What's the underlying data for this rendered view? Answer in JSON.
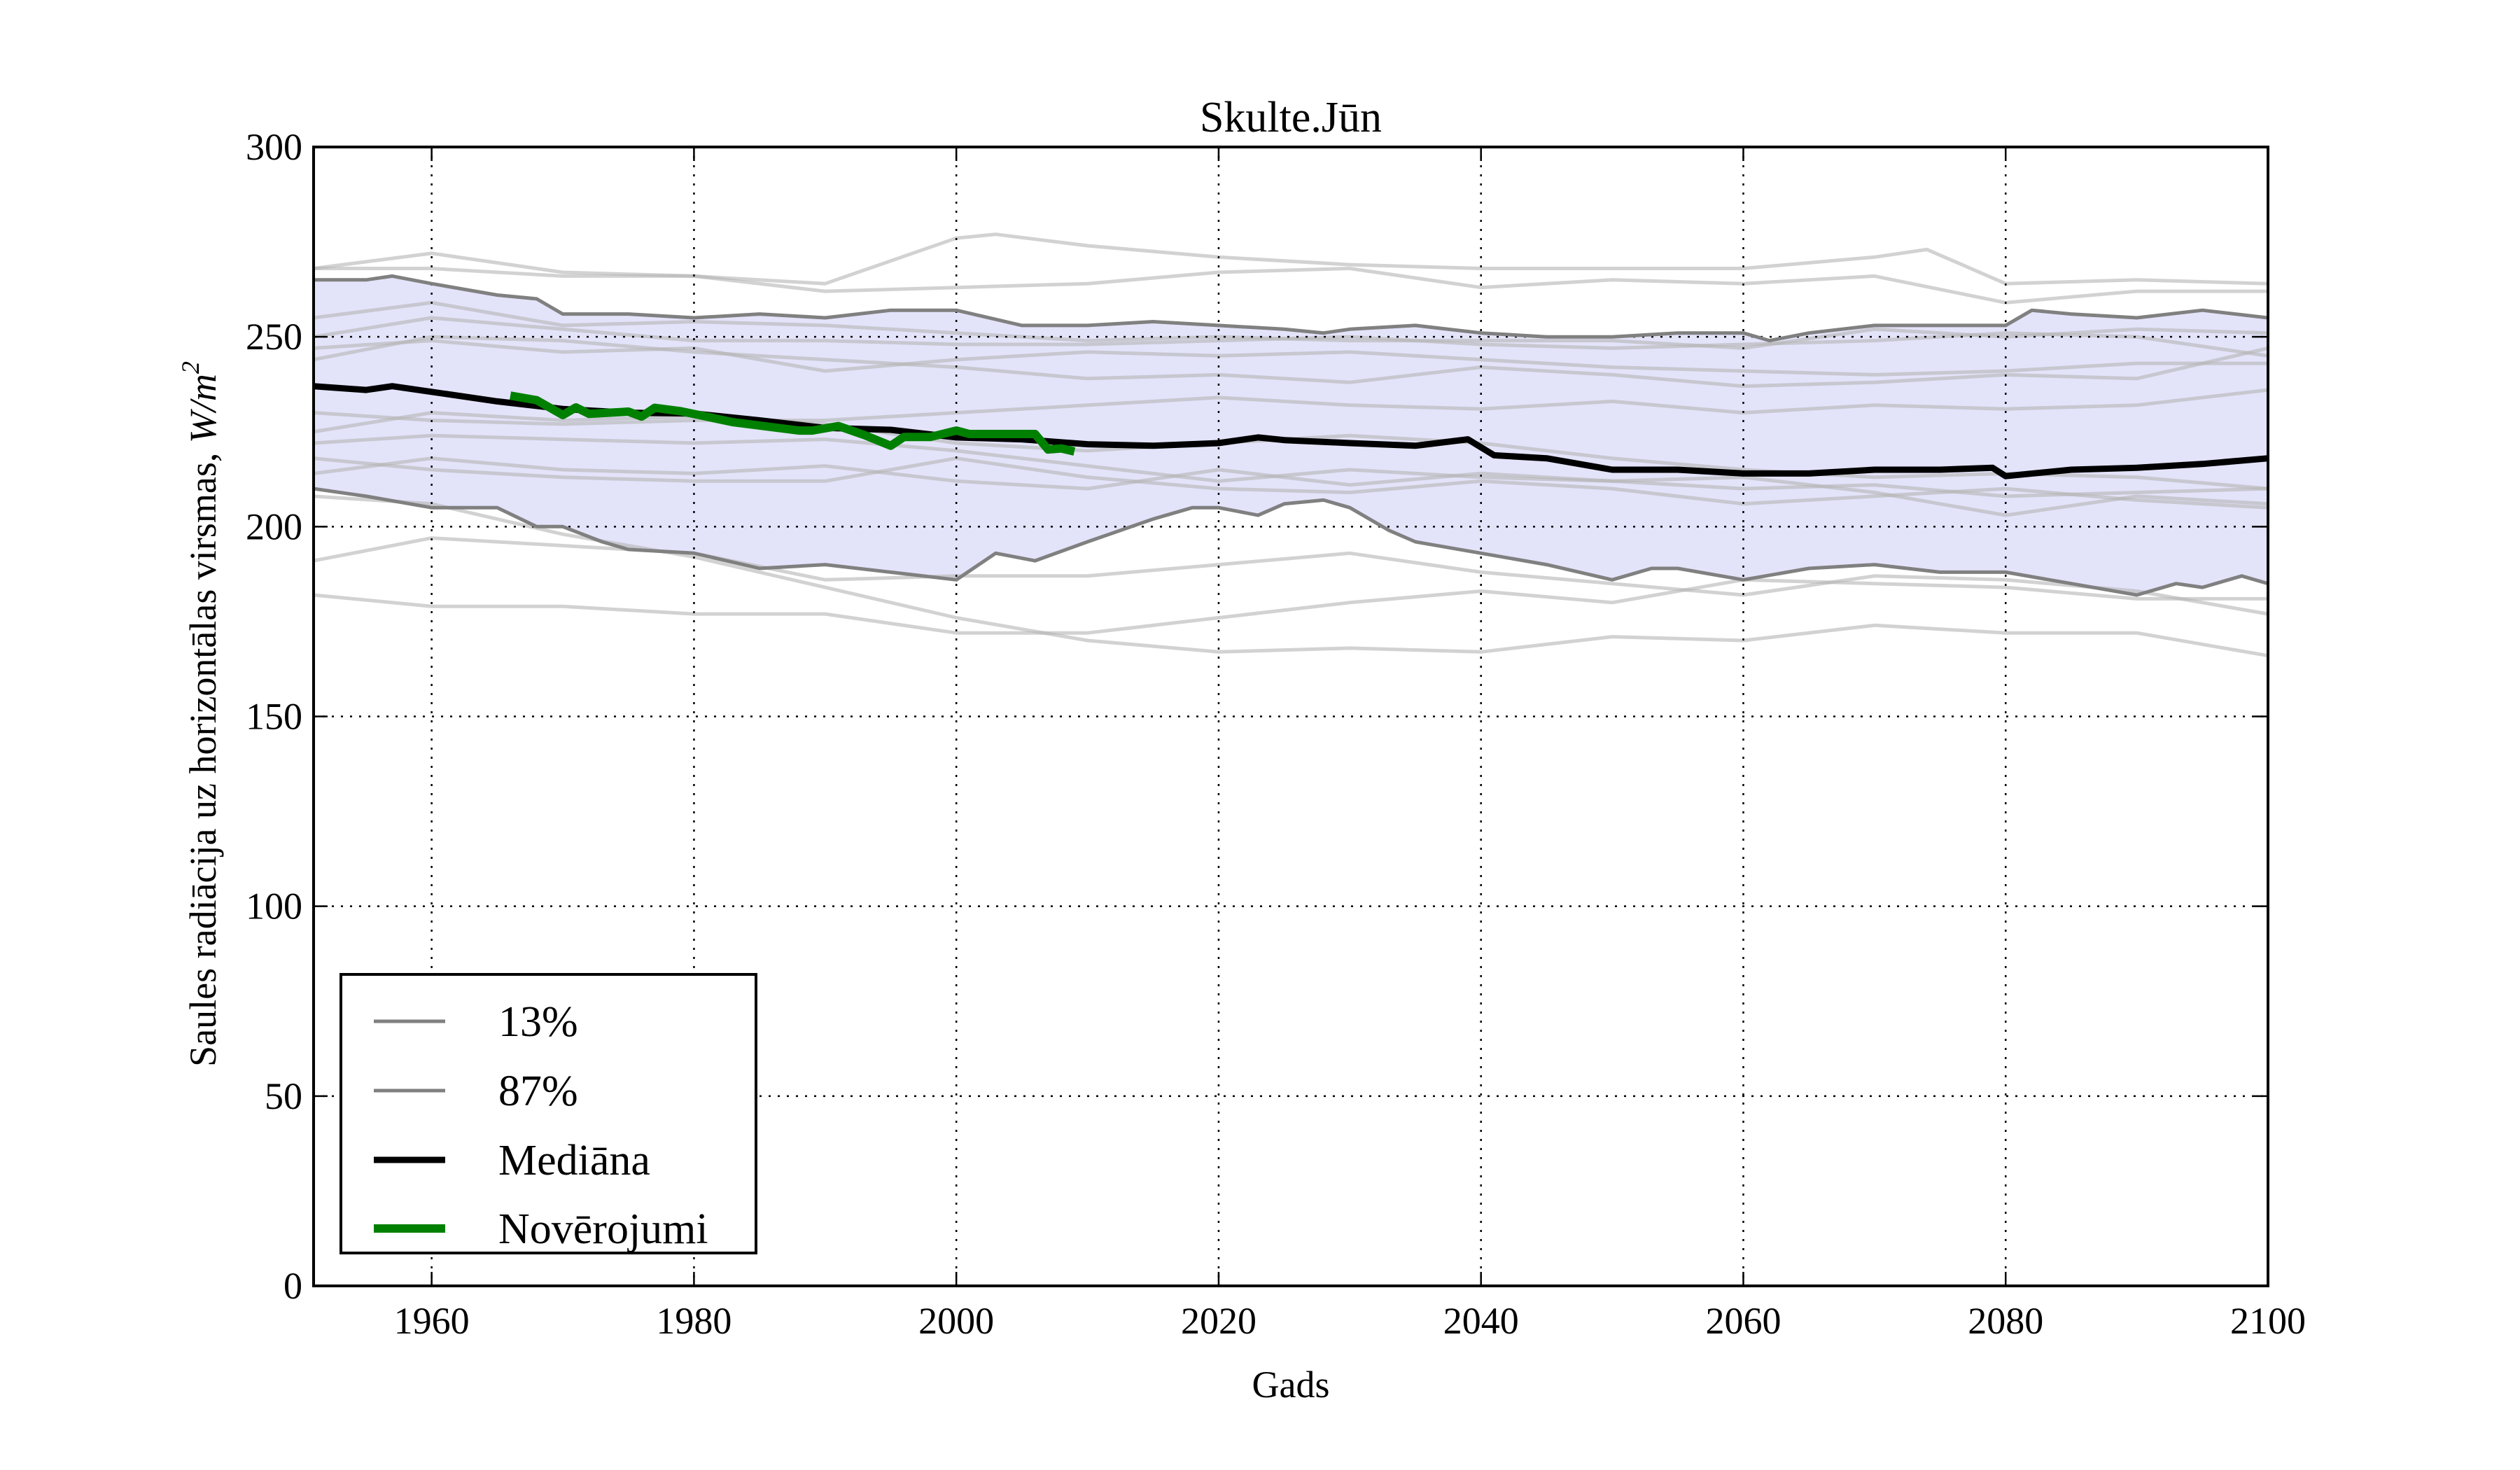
{
  "chart_data": {
    "type": "line",
    "title": "Skulte.Jūn",
    "xlabel": "Gads",
    "ylabel": "Saules radiācija uz horizontālas virsmas, ",
    "ylabel_math": "W/m",
    "ylabel_math_sup": "2",
    "xlim": [
      1951,
      2100
    ],
    "ylim": [
      0,
      300
    ],
    "x_ticks": [
      1960,
      1980,
      2000,
      2020,
      2040,
      2060,
      2080,
      2100
    ],
    "x_tick_labels": [
      "1960",
      "1980",
      "2000",
      "2020",
      "2040",
      "2060",
      "2080",
      "2100"
    ],
    "y_ticks": [
      0,
      50,
      100,
      150,
      200,
      250,
      300
    ],
    "y_tick_labels": [
      "0",
      "50",
      "100",
      "150",
      "200",
      "250",
      "300"
    ],
    "grid": true,
    "legend_position": "lower-left",
    "legend": [
      {
        "label": "13%",
        "key": "p13"
      },
      {
        "label": "87%",
        "key": "p87"
      },
      {
        "label": "Mediāna",
        "key": "median"
      },
      {
        "label": "Novērojumi",
        "key": "obs"
      }
    ],
    "colors": {
      "band_fill": "#e3e3fa",
      "band_edge": "#808080",
      "ensemble": "#c8c8c8",
      "median": "#000000",
      "obs": "#008000",
      "grid": "#000000",
      "axes": "#000000"
    },
    "series": {
      "p87": {
        "name": "87%",
        "x": [
          1951,
          1955,
          1957,
          1960,
          1965,
          1968,
          1970,
          1975,
          1980,
          1985,
          1990,
          1995,
          2000,
          2005,
          2010,
          2015,
          2020,
          2025,
          2028,
          2030,
          2035,
          2040,
          2045,
          2050,
          2055,
          2060,
          2062,
          2065,
          2070,
          2075,
          2080,
          2082,
          2085,
          2090,
          2095,
          2100
        ],
        "y": [
          265,
          265,
          266,
          264,
          261,
          260,
          256,
          256,
          255,
          256,
          255,
          257,
          257,
          253,
          253,
          254,
          253,
          252,
          251,
          252,
          253,
          251,
          250,
          250,
          251,
          251,
          249,
          251,
          253,
          253,
          253,
          257,
          256,
          255,
          257,
          255
        ]
      },
      "p13": {
        "name": "13%",
        "x": [
          1951,
          1955,
          1960,
          1965,
          1968,
          1970,
          1973,
          1975,
          1980,
          1985,
          1990,
          1995,
          2000,
          2003,
          2006,
          2010,
          2015,
          2018,
          2020,
          2023,
          2025,
          2028,
          2030,
          2033,
          2035,
          2040,
          2045,
          2050,
          2053,
          2055,
          2060,
          2065,
          2070,
          2075,
          2080,
          2085,
          2090,
          2093,
          2095,
          2098,
          2100
        ],
        "y": [
          210,
          208,
          205,
          205,
          200,
          200,
          196,
          194,
          193,
          189,
          190,
          188,
          186,
          193,
          191,
          196,
          202,
          205,
          205,
          203,
          206,
          207,
          205,
          199,
          196,
          193,
          190,
          186,
          189,
          189,
          186,
          189,
          190,
          188,
          188,
          185,
          182,
          185,
          184,
          187,
          185
        ]
      },
      "median": {
        "name": "Mediāna",
        "x": [
          1951,
          1955,
          1957,
          1960,
          1965,
          1970,
          1975,
          1980,
          1985,
          1990,
          1995,
          2000,
          2005,
          2010,
          2015,
          2020,
          2023,
          2025,
          2030,
          2035,
          2039,
          2041,
          2045,
          2050,
          2055,
          2060,
          2065,
          2070,
          2075,
          2079,
          2080,
          2085,
          2090,
          2095,
          2100
        ],
        "y": [
          237,
          236,
          237,
          235.5,
          233,
          231,
          230,
          229.8,
          228,
          226,
          225.5,
          223.5,
          223,
          221.7,
          221.3,
          222,
          223.5,
          222.8,
          222,
          221.3,
          223,
          218.8,
          218,
          215,
          215,
          214,
          214,
          215,
          215,
          215.5,
          213.3,
          215,
          215.5,
          216.5,
          218
        ]
      },
      "obs": {
        "name": "Novērojumi",
        "x": [
          1966,
          1968,
          1970,
          1971,
          1972,
          1975,
          1976,
          1977,
          1979,
          1983,
          1988,
          1989,
          1991,
          1993,
          1995,
          1996,
          1998,
          2000,
          2001,
          2006,
          2007,
          2008,
          2009
        ],
        "y": [
          234.5,
          233.3,
          229.4,
          231.4,
          229.7,
          230.3,
          229,
          231.3,
          230.4,
          227.5,
          225.3,
          225.3,
          226.5,
          224.1,
          221.3,
          223.6,
          223.6,
          225.3,
          224.4,
          224.4,
          220.3,
          220.6,
          219.8
        ]
      },
      "ensemble": [
        {
          "x": [
            1951,
            1960,
            1970,
            1980,
            1990,
            1995,
            2000,
            2003,
            2010,
            2020,
            2030,
            2040,
            2050,
            2060,
            2070,
            2074,
            2080,
            2090,
            2100
          ],
          "y": [
            268,
            272,
            267,
            266,
            264,
            270,
            276,
            277,
            274,
            271,
            269,
            268,
            268,
            268,
            271,
            273,
            264,
            265,
            264
          ]
        },
        {
          "x": [
            1951,
            1960,
            1970,
            1980,
            1990,
            2000,
            2010,
            2020,
            2030,
            2040,
            2050,
            2060,
            2070,
            2080,
            2090,
            2100
          ],
          "y": [
            268,
            268,
            266,
            266,
            262,
            263,
            264,
            267,
            268,
            263,
            265,
            264,
            266,
            259,
            262,
            262
          ]
        },
        {
          "x": [
            1951,
            1960,
            1970,
            1980,
            1990,
            2000,
            2010,
            2020,
            2030,
            2040,
            2050,
            2060,
            2070,
            2080,
            2090,
            2100
          ],
          "y": [
            255,
            259,
            253,
            254,
            253,
            251,
            249,
            250,
            249,
            249,
            249,
            247,
            252,
            250,
            252,
            251
          ]
        },
        {
          "x": [
            1951,
            1960,
            1970,
            1980,
            1990,
            2000,
            2010,
            2020,
            2030,
            2040,
            2050,
            2060,
            2070,
            2080,
            2090,
            2100
          ],
          "y": [
            250,
            255,
            252,
            249,
            249,
            248,
            248,
            249,
            250,
            248,
            247,
            248,
            249,
            251,
            250,
            245
          ]
        },
        {
          "x": [
            1951,
            1960,
            1970,
            1980,
            1990,
            2000,
            2010,
            2020,
            2030,
            2040,
            2050,
            2060,
            2070,
            2080,
            2090,
            2100
          ],
          "y": [
            247,
            249,
            246,
            247,
            241,
            244,
            246,
            245,
            246,
            244,
            242,
            241,
            240,
            241,
            243,
            243
          ]
        },
        {
          "x": [
            1951,
            1960,
            1970,
            1980,
            1990,
            2000,
            2010,
            2020,
            2030,
            2040,
            2050,
            2060,
            2070,
            2080,
            2090,
            2100
          ],
          "y": [
            244,
            250,
            249,
            246,
            244,
            242,
            239,
            240,
            238,
            242,
            240,
            237,
            238,
            240,
            239,
            247
          ]
        },
        {
          "x": [
            1951,
            1960,
            1970,
            1980,
            1990,
            2000,
            2010,
            2020,
            2030,
            2040,
            2050,
            2060,
            2070,
            2080,
            2090,
            2100
          ],
          "y": [
            230,
            228,
            227,
            228,
            228,
            230,
            232,
            234,
            232,
            231,
            233,
            230,
            232,
            231,
            232,
            236
          ]
        },
        {
          "x": [
            1951,
            1960,
            1970,
            1980,
            1990,
            2000,
            2010,
            2020,
            2030,
            2040,
            2050,
            2060,
            2070,
            2080,
            2090,
            2100
          ],
          "y": [
            225,
            230,
            228,
            229,
            227,
            222,
            220,
            222,
            224,
            222,
            218,
            215,
            213,
            214,
            213,
            210
          ]
        },
        {
          "x": [
            1951,
            1960,
            1970,
            1980,
            1990,
            2000,
            2010,
            2020,
            2030,
            2040,
            2050,
            2060,
            2070,
            2080,
            2090,
            2100
          ],
          "y": [
            222,
            224,
            223,
            222,
            223,
            220,
            216,
            212,
            215,
            213,
            212,
            210,
            211,
            208,
            209,
            210
          ]
        },
        {
          "x": [
            1951,
            1960,
            1970,
            1980,
            1990,
            2000,
            2010,
            2020,
            2030,
            2040,
            2050,
            2060,
            2070,
            2080,
            2090,
            2100
          ],
          "y": [
            218,
            215,
            213,
            212,
            212,
            218,
            213,
            210,
            209,
            212,
            210,
            206,
            208,
            210,
            207,
            205
          ]
        },
        {
          "x": [
            1951,
            1960,
            1970,
            1980,
            1990,
            2000,
            2010,
            2020,
            2030,
            2040,
            2050,
            2060,
            2070,
            2080,
            2090,
            2100
          ],
          "y": [
            214,
            218,
            215,
            214,
            216,
            212,
            210,
            215,
            211,
            214,
            212,
            213,
            209,
            203,
            208,
            206
          ]
        },
        {
          "x": [
            1951,
            1960,
            1970,
            1980,
            1990,
            2000,
            2010,
            2020,
            2030,
            2040,
            2050,
            2060,
            2070,
            2080,
            2090,
            2100
          ],
          "y": [
            191,
            197,
            195,
            193,
            186,
            187,
            187,
            190,
            193,
            188,
            185,
            182,
            187,
            186,
            183,
            177
          ]
        },
        {
          "x": [
            1951,
            1960,
            1970,
            1980,
            1990,
            2000,
            2010,
            2020,
            2030,
            2040,
            2050,
            2060,
            2070,
            2080,
            2090,
            2100
          ],
          "y": [
            182,
            179,
            179,
            177,
            177,
            172,
            172,
            176,
            180,
            183,
            180,
            186,
            185,
            184,
            181,
            181
          ]
        },
        {
          "x": [
            1951,
            1960,
            1970,
            1980,
            1990,
            2000,
            2010,
            2020,
            2030,
            2040,
            2050,
            2060,
            2070,
            2080,
            2090,
            2100
          ],
          "y": [
            208,
            206,
            198,
            192,
            184,
            176,
            170,
            167,
            168,
            167,
            171,
            170,
            174,
            172,
            172,
            166
          ]
        }
      ]
    }
  }
}
